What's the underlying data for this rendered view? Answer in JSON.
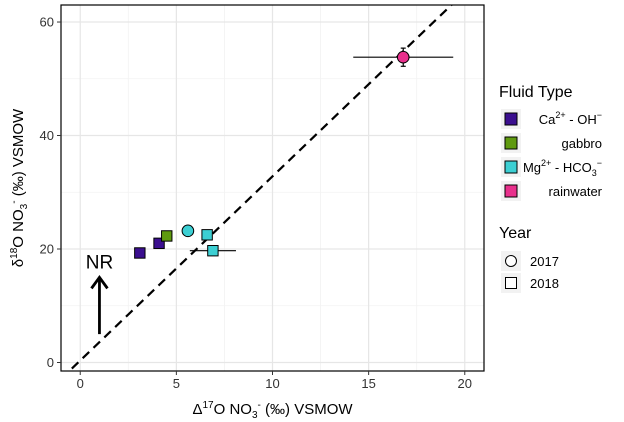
{
  "chart_data": {
    "type": "scatter",
    "title": "",
    "xlabel": {
      "prefix": "Δ",
      "sup": "17",
      "main": "O NO",
      "sub": "3",
      "supAfter": "-",
      "suffix": " (‰) VSMOW"
    },
    "ylabel": {
      "prefix": "δ",
      "sup": "18",
      "main": "O NO",
      "sub": "3",
      "supAfter": "-",
      "suffix": " (‰) VSMOW"
    },
    "xlim": [
      -1,
      21
    ],
    "ylim": [
      -1.5,
      63
    ],
    "xticks": [
      0,
      5,
      10,
      15,
      20
    ],
    "yticks": [
      0,
      20,
      40,
      60
    ],
    "grid": true,
    "reference_line": {
      "style": "dashed",
      "x": [
        -1,
        21
      ],
      "y": [
        -2.9,
        68.5
      ]
    },
    "annotation": {
      "text": "NR",
      "arrow_x": 1,
      "arrow_from_y": 5,
      "arrow_to_y": 15
    },
    "fluid_types": [
      {
        "key": "ca",
        "color": "#3B0F8F",
        "label": {
          "base": "Ca",
          "sup": "2+",
          "mid": " - OH",
          "sup2": "−"
        }
      },
      {
        "key": "gabbro",
        "color": "#5F9A0F",
        "label": {
          "base": "gabbro"
        }
      },
      {
        "key": "mg",
        "color": "#3CCFD3",
        "label": {
          "base": "Mg",
          "sup": "2+",
          "mid": " - HCO",
          "sub": "3",
          "sup2": "−"
        }
      },
      {
        "key": "rain",
        "color": "#E8308C",
        "label": {
          "base": "rainwater"
        }
      }
    ],
    "years": [
      {
        "key": "2017",
        "label": "2017",
        "shape": "circle"
      },
      {
        "key": "2018",
        "label": "2018",
        "shape": "square"
      }
    ],
    "points": [
      {
        "fluid": "ca",
        "year": "2018",
        "x": 3.1,
        "y": 19.3,
        "xerr": 0.0,
        "yerr": 0.0
      },
      {
        "fluid": "ca",
        "year": "2018",
        "x": 4.1,
        "y": 21.0,
        "xerr": 0.0,
        "yerr": 0.0
      },
      {
        "fluid": "gabbro",
        "year": "2018",
        "x": 4.5,
        "y": 22.3,
        "xerr": 0.0,
        "yerr": 0.3
      },
      {
        "fluid": "mg",
        "year": "2017",
        "x": 5.6,
        "y": 23.2,
        "xerr": 0.0,
        "yerr": 0.0
      },
      {
        "fluid": "mg",
        "year": "2018",
        "x": 6.6,
        "y": 22.5,
        "xerr": 0.0,
        "yerr": 0.3
      },
      {
        "fluid": "mg",
        "year": "2018",
        "x": 6.9,
        "y": 19.7,
        "xerr": 1.2,
        "yerr": 0.5
      },
      {
        "fluid": "rain",
        "year": "2017",
        "x": 16.8,
        "y": 53.8,
        "xerr": 2.6,
        "yerr": 1.6
      }
    ],
    "legend": {
      "title": "Fluid Type",
      "shape_title": "Year",
      "position": "right"
    }
  }
}
